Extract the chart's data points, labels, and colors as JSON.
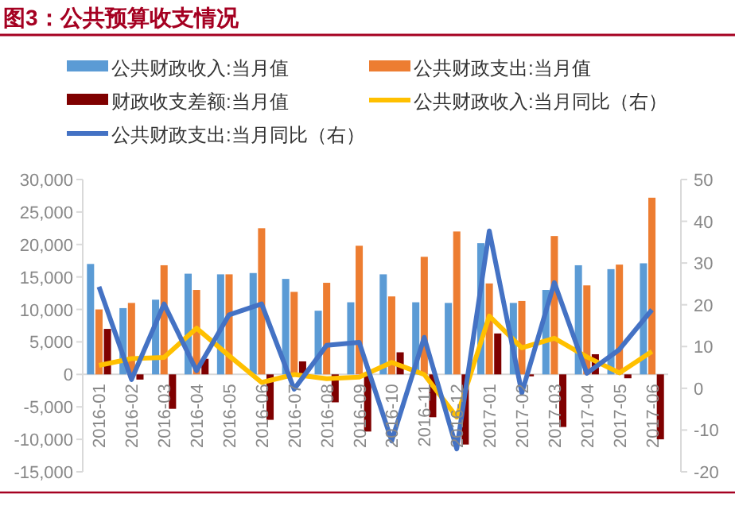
{
  "chart_data": {
    "type": "bar",
    "title": "图3：公共预算收支情况",
    "legend": "top",
    "grid": false,
    "marker": "none",
    "categories": [
      "2016-01",
      "2016-02",
      "2016-03",
      "2016-04",
      "2016-05",
      "2016-06",
      "2016-07",
      "2016-08",
      "2016-09",
      "2016-10",
      "2016-11",
      "2016-12",
      "2017-01",
      "2017-02",
      "2017-03",
      "2017-04",
      "2017-05",
      "2017-06"
    ],
    "ylim": [
      -15000,
      30000
    ],
    "yticks": [
      {
        "value": -15000,
        "label": "-15,000"
      },
      {
        "value": -10000,
        "label": "-10,000"
      },
      {
        "value": -5000,
        "label": "-5,000"
      },
      0,
      {
        "value": 5000,
        "label": "5,000"
      },
      {
        "value": 10000,
        "label": "10,000"
      },
      {
        "value": 15000,
        "label": "15,000"
      },
      {
        "value": 20000,
        "label": "20,000"
      },
      {
        "value": 25000,
        "label": "25,000"
      },
      {
        "value": 30000,
        "label": "30,000"
      }
    ],
    "y2lim": [
      -20,
      50
    ],
    "y2ticks": [
      -20,
      -10,
      0,
      10,
      20,
      30,
      40,
      50
    ],
    "series": [
      {
        "name": "公共财政收入:当月值",
        "color": "#5b9bd5",
        "values": [
          17000,
          10200,
          11500,
          15500,
          15400,
          15600,
          14700,
          9800,
          11100,
          15400,
          11100,
          11000,
          20200,
          11000,
          13000,
          16800,
          16200,
          17100
        ]
      },
      {
        "name": "公共财政支出:当月值",
        "color": "#ed7d31",
        "values": [
          10000,
          11000,
          16800,
          13000,
          15400,
          22500,
          12700,
          14100,
          19800,
          12000,
          18100,
          22000,
          14000,
          11300,
          21300,
          13700,
          16900,
          27200
        ]
      },
      {
        "name": "财政收支差额:当月值",
        "color": "#7f0000",
        "values": [
          7000,
          -800,
          -5300,
          2400,
          0,
          -7000,
          2000,
          -4300,
          -8800,
          3400,
          -6600,
          -10800,
          6300,
          -300,
          -8100,
          3100,
          -600,
          -10000
        ]
      },
      {
        "name": "公共财政收入:当月同比（右）",
        "type": "line",
        "axis": "y2",
        "color": "#ffc000",
        "values": [
          5.5,
          7.1,
          7.4,
          14.4,
          7.8,
          1.4,
          3.3,
          2.3,
          2.7,
          6.2,
          3.3,
          -6.9,
          17.3,
          9.7,
          12.0,
          7.5,
          3.7,
          8.8
        ]
      },
      {
        "name": "公共财政支出:当月同比（右）",
        "type": "line",
        "axis": "y2",
        "color": "#4472c4",
        "values": [
          24.3,
          2.1,
          20.2,
          4.2,
          17.6,
          20.2,
          -0.2,
          10.3,
          11.0,
          -12.6,
          12.2,
          -14.5,
          37.7,
          -1.1,
          25.3,
          3.6,
          9.3,
          18.8
        ]
      }
    ]
  }
}
